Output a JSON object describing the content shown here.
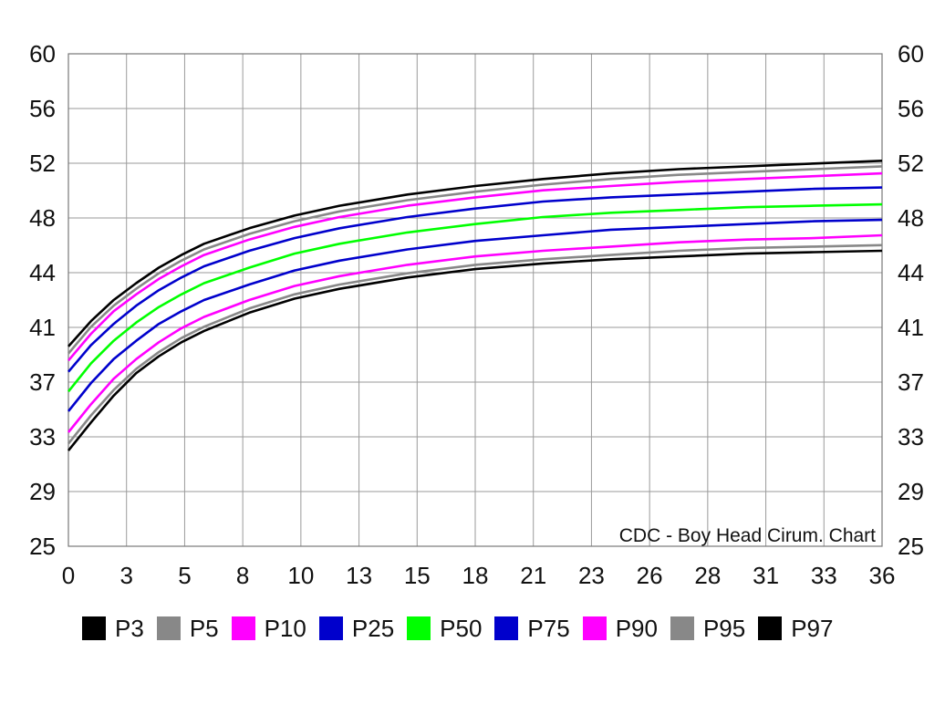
{
  "chart_data": {
    "type": "line",
    "title": "CDC - Boy Head Cirum. Chart",
    "x_ticks": [
      "0",
      "3",
      "5",
      "8",
      "10",
      "13",
      "15",
      "18",
      "21",
      "23",
      "26",
      "28",
      "31",
      "33",
      "36"
    ],
    "y_ticks": [
      "25",
      "29",
      "33",
      "37",
      "41",
      "44",
      "48",
      "52",
      "56",
      "60"
    ],
    "xlim": [
      0,
      36
    ],
    "ylim": [
      25,
      60
    ],
    "grid": true,
    "legend_position": "bottom-left",
    "x": [
      0,
      1,
      2,
      3,
      4,
      5,
      6,
      8,
      10,
      12,
      15,
      18,
      21,
      24,
      27,
      30,
      33,
      36
    ],
    "series": [
      {
        "name": "P3",
        "color": "#000000",
        "values": [
          31.8,
          33.8,
          35.7,
          37.3,
          38.5,
          39.5,
          40.3,
          41.6,
          42.6,
          43.3,
          44.1,
          44.7,
          45.1,
          45.4,
          45.6,
          45.8,
          45.9,
          46.0
        ]
      },
      {
        "name": "P5",
        "color": "#888888",
        "values": [
          32.3,
          34.3,
          36.1,
          37.6,
          38.8,
          39.8,
          40.6,
          41.9,
          42.9,
          43.6,
          44.4,
          45.0,
          45.4,
          45.7,
          46.0,
          46.2,
          46.3,
          46.4
        ]
      },
      {
        "name": "P10",
        "color": "#ff00ff",
        "values": [
          33.1,
          35.1,
          36.9,
          38.3,
          39.5,
          40.5,
          41.3,
          42.5,
          43.5,
          44.2,
          45.0,
          45.6,
          46.0,
          46.3,
          46.6,
          46.8,
          46.9,
          47.1
        ]
      },
      {
        "name": "P25",
        "color": "#0000cc",
        "values": [
          34.6,
          36.6,
          38.3,
          39.6,
          40.8,
          41.7,
          42.5,
          43.6,
          44.6,
          45.3,
          46.1,
          46.7,
          47.1,
          47.5,
          47.7,
          47.9,
          48.1,
          48.2
        ]
      },
      {
        "name": "P50",
        "color": "#00ff00",
        "values": [
          36.0,
          38.0,
          39.6,
          40.9,
          42.0,
          42.9,
          43.7,
          44.8,
          45.8,
          46.5,
          47.3,
          47.9,
          48.4,
          48.7,
          48.9,
          49.1,
          49.2,
          49.3
        ]
      },
      {
        "name": "P75",
        "color": "#0000cc",
        "values": [
          37.4,
          39.3,
          40.8,
          42.1,
          43.2,
          44.1,
          44.9,
          46.0,
          46.9,
          47.6,
          48.4,
          49.0,
          49.5,
          49.8,
          50.0,
          50.2,
          50.4,
          50.5
        ]
      },
      {
        "name": "P90",
        "color": "#ff00ff",
        "values": [
          38.2,
          40.1,
          41.7,
          42.9,
          44.0,
          44.9,
          45.7,
          46.8,
          47.7,
          48.4,
          49.2,
          49.8,
          50.3,
          50.6,
          50.9,
          51.1,
          51.3,
          51.5
        ]
      },
      {
        "name": "P95",
        "color": "#888888",
        "values": [
          38.7,
          40.6,
          42.1,
          43.3,
          44.4,
          45.3,
          46.1,
          47.2,
          48.1,
          48.8,
          49.6,
          50.2,
          50.7,
          51.1,
          51.4,
          51.6,
          51.8,
          52.0
        ]
      },
      {
        "name": "P97",
        "color": "#000000",
        "values": [
          39.2,
          41.0,
          42.5,
          43.7,
          44.8,
          45.7,
          46.5,
          47.6,
          48.5,
          49.2,
          50.0,
          50.6,
          51.1,
          51.5,
          51.8,
          52.0,
          52.2,
          52.4
        ]
      }
    ]
  }
}
